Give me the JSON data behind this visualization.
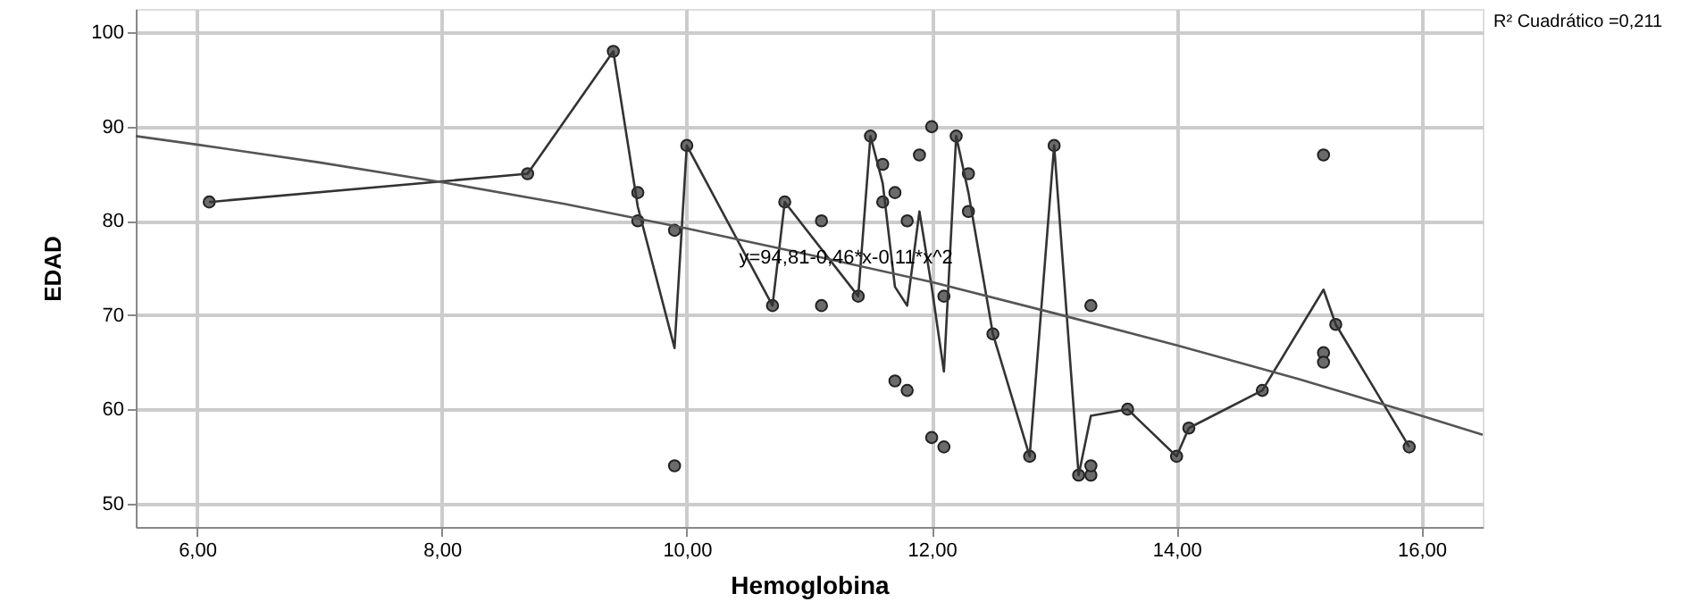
{
  "chart_data": {
    "type": "scatter",
    "xlabel": "Hemoglobina",
    "ylabel": "EDAD",
    "xlim": [
      5.5,
      16.5
    ],
    "ylim": [
      47.5,
      102.5
    ],
    "xticks": [
      {
        "value": 6,
        "label": "6,00"
      },
      {
        "value": 8,
        "label": "8,00"
      },
      {
        "value": 10,
        "label": "10,00"
      },
      {
        "value": 12,
        "label": "12,00"
      },
      {
        "value": 14,
        "label": "14,00"
      },
      {
        "value": 16,
        "label": "16,00"
      }
    ],
    "yticks": [
      50,
      60,
      70,
      80,
      90,
      100
    ],
    "grid": true,
    "marker": "circle",
    "x": [
      6.1,
      8.7,
      9.4,
      9.6,
      9.6,
      9.9,
      9.9,
      10.0,
      10.7,
      10.8,
      11.1,
      11.1,
      11.4,
      11.5,
      11.6,
      11.6,
      11.7,
      11.7,
      11.8,
      11.8,
      11.9,
      12.0,
      12.0,
      12.1,
      12.1,
      12.2,
      12.3,
      12.3,
      12.5,
      12.8,
      13.0,
      13.2,
      13.3,
      13.3,
      13.3,
      13.6,
      14.0,
      14.1,
      14.7,
      15.2,
      15.2,
      15.2,
      15.3,
      15.9
    ],
    "series": [
      {
        "color": "#6b6b6b",
        "values": [
          82,
          85,
          98,
          83,
          80,
          79,
          54,
          88,
          71,
          82,
          80,
          71,
          72,
          89,
          86,
          82,
          83,
          63,
          62,
          80,
          87,
          90,
          57,
          56,
          72,
          89,
          85,
          81,
          68,
          55,
          88,
          53,
          53,
          54,
          71,
          60,
          55,
          58,
          62,
          87,
          66,
          65,
          69,
          56
        ]
      },
      {
        "type": "line",
        "marker": "none",
        "line_style": "solid",
        "color": "#333333",
        "x": [
          6.1,
          8.7,
          9.4,
          9.6,
          9.9,
          10.0,
          10.7,
          10.8,
          11.4,
          11.5,
          11.6,
          11.7,
          11.8,
          11.9,
          12.0,
          12.1,
          12.2,
          12.3,
          12.5,
          12.8,
          13.0,
          13.2,
          13.3,
          13.6,
          14.0,
          14.1,
          14.7,
          15.2,
          15.3,
          15.9
        ],
        "values": [
          82,
          85,
          98,
          81.5,
          66.5,
          88,
          71,
          82,
          72,
          89,
          84,
          73,
          71,
          81,
          73,
          64,
          89,
          83,
          68,
          55,
          88,
          53,
          59.3,
          60,
          55,
          58,
          62,
          72.7,
          69,
          56
        ]
      },
      {
        "type": "line",
        "marker": "none",
        "line_style": "solid",
        "color": "#555555",
        "x": [
          5.5,
          6,
          7,
          8,
          9,
          10,
          11,
          12,
          13,
          14,
          15,
          16,
          16.5
        ],
        "values": [
          89.0,
          88.1,
          86.2,
          84.1,
          81.8,
          79.2,
          76.4,
          73.5,
          70.2,
          66.8,
          63.2,
          59.3,
          57.3
        ]
      }
    ],
    "annotations": [
      {
        "text": "y=94,81-0,46*x-0,11*x^2",
        "x": 11.3,
        "y": 76
      },
      "R² Cuadrático =0,211"
    ]
  }
}
